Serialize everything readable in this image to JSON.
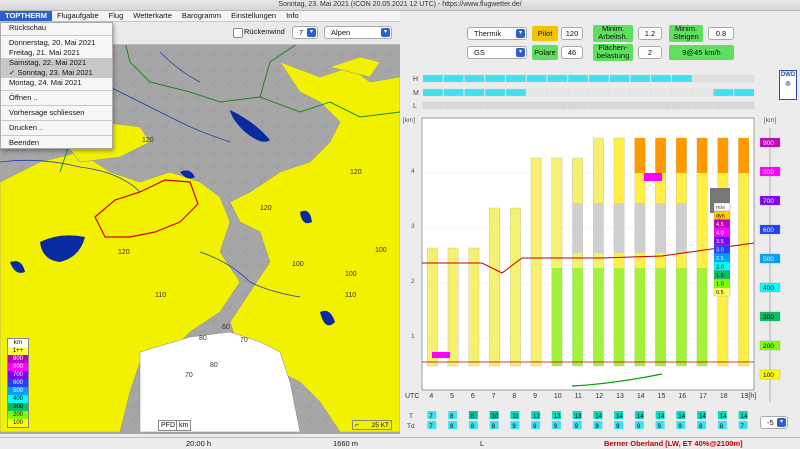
{
  "window": {
    "title": "Sonntag, 23. Mai 2021 (ICON 20.05.2021 12 UTC) - https://www.flugwetter.de/"
  },
  "menu": {
    "items": [
      "TOPTHERM",
      "Flugaufgabe",
      "Flug",
      "Wetterkarte",
      "Barogramm",
      "Einstellungen",
      "Info"
    ]
  },
  "dropdown": {
    "header": "Rückschau",
    "days": [
      "Donnerstag, 20. Mai 2021",
      "Freitag, 21. Mai 2021",
      "Samstag, 22. Mai 2021",
      "✓ Sonntag, 23. Mai 2021",
      "Montag, 24. Mai 2021"
    ],
    "actions": [
      "Öffnen ..",
      "Vorhersage schliessen",
      "Drucken ..",
      "Beenden"
    ]
  },
  "map_toolbar": {
    "rueckenwind_label": "Rückenwind",
    "step_value": "7",
    "region": "Alpen"
  },
  "map_contours": [
    "120",
    "120",
    "120",
    "120",
    "100",
    "100",
    "100",
    "110",
    "110",
    "80",
    "80",
    "70",
    "60",
    "70"
  ],
  "map_legend": {
    "unit": "km",
    "levels": [
      "1++",
      "900",
      "800",
      "700",
      "600",
      "500",
      "400",
      "300",
      "200",
      "100"
    ],
    "colors": [
      "#ffff40",
      "#c000c0",
      "#ff00ff",
      "#8000ff",
      "#2040ff",
      "#00a0ff",
      "#00ffff",
      "#00c060",
      "#80ff00",
      "#ffff00"
    ]
  },
  "map_bottom": {
    "pfd": "PFD",
    "km": "km",
    "wind_scale": "25 KT"
  },
  "params": {
    "mode": "Thermik",
    "pilot_label": "Pilot",
    "pilot_value": "120",
    "min_arbeit_label": "Minim. Arbeitsh.",
    "min_arbeit_value": "1.2",
    "min_steigen_label": "Minim. Steigen",
    "min_steigen_value": "0.8",
    "glider": "GS",
    "polare_label": "Polare",
    "polare_value": "46",
    "flaeche_label": "Flächen- belastung",
    "flaeche_value": "2",
    "speed": "9@45 km/h"
  },
  "meteogram": {
    "row_labels": [
      "H",
      "M",
      "L"
    ],
    "left_axis_unit": "[km]",
    "left_ticks": [
      "4",
      "3",
      "2",
      "1"
    ],
    "right_axis_unit": "[km]",
    "right_ticks": [
      "900",
      "800",
      "700",
      "600",
      "500",
      "400",
      "300",
      "200",
      "100"
    ],
    "ms_legend_unit": "m/s",
    "ms_legend": [
      "dyn",
      "4.5",
      "4.0",
      "3.5",
      "3.0",
      "2.5",
      "2.0",
      "1.5",
      "1.0",
      "0.5"
    ],
    "ms_colors": [
      "#ffcc00",
      "#c000c0",
      "#ff00ff",
      "#8000ff",
      "#2040ff",
      "#00a0ff",
      "#00ffff",
      "#00c060",
      "#80ff00",
      "#ffff60"
    ],
    "utc_label": "UTC",
    "hours": [
      "4",
      "5",
      "6",
      "7",
      "8",
      "9",
      "10",
      "11",
      "12",
      "13",
      "14",
      "15",
      "16",
      "17",
      "18",
      "19[h]"
    ],
    "t_label": "T",
    "td_label": "Td",
    "t_values": [
      "7",
      "8",
      "8",
      "10",
      "11",
      "12",
      "13",
      "13",
      "14",
      "14",
      "14",
      "14",
      "14",
      "14",
      "14",
      "14"
    ],
    "td_values": [
      "7",
      "8",
      "8",
      "8",
      "9",
      "9",
      "9",
      "9",
      "9",
      "9",
      "9",
      "9",
      "9",
      "8",
      "8",
      "7"
    ],
    "offset_select": "-5"
  },
  "status": {
    "time": "20:00 h",
    "altitude": "1660 m",
    "letter": "L",
    "region": "Berner Oberland [LW, ET 40%@2100m]"
  }
}
